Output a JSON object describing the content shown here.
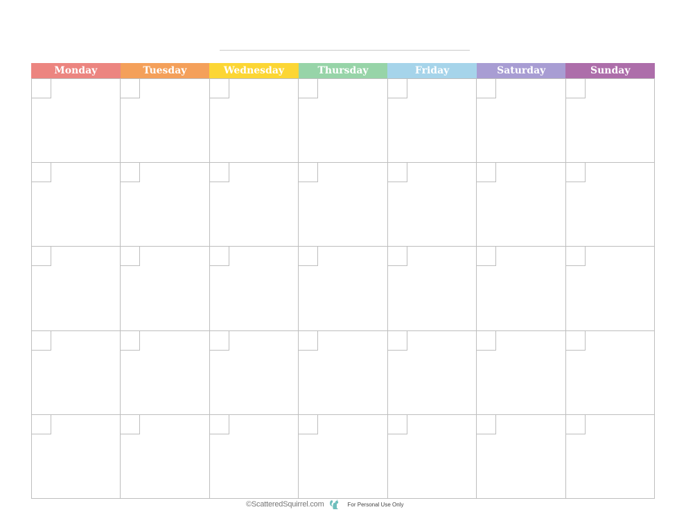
{
  "calendar": {
    "days": [
      {
        "label": "Monday",
        "color": "#ec8580"
      },
      {
        "label": "Tuesday",
        "color": "#f4a05a"
      },
      {
        "label": "Wednesday",
        "color": "#fcd634"
      },
      {
        "label": "Thursday",
        "color": "#97d4a8"
      },
      {
        "label": "Friday",
        "color": "#a6d4ea"
      },
      {
        "label": "Saturday",
        "color": "#a89dd3"
      },
      {
        "label": "Sunday",
        "color": "#ad6eaa"
      }
    ],
    "weeks": 5
  },
  "footer": {
    "credit": "©ScatteredSquirrel.com",
    "license": "For Personal Use Only",
    "icon": "squirrel-icon",
    "icon_color": "#6fbfbd"
  }
}
